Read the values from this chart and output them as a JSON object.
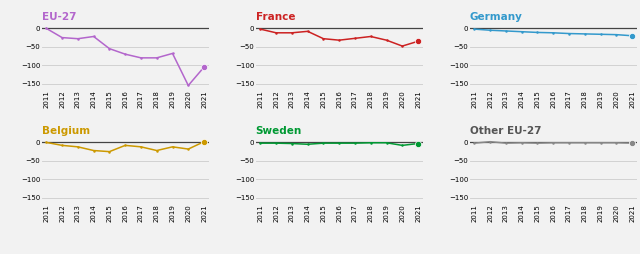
{
  "years": [
    2011,
    2012,
    2013,
    2014,
    2015,
    2016,
    2017,
    2018,
    2019,
    2020,
    2021
  ],
  "series": {
    "EU-27": {
      "values": [
        0,
        -25,
        -28,
        -22,
        -55,
        -70,
        -80,
        -80,
        -68,
        -155,
        -105
      ],
      "color": "#b366cc",
      "title_color": "#b366cc",
      "ylim": [
        -165,
        15
      ],
      "yticks": [
        0,
        -50,
        -100,
        -150
      ],
      "row": 0,
      "col": 0
    },
    "France": {
      "values": [
        -2,
        -12,
        -12,
        -8,
        -28,
        -32,
        -27,
        -22,
        -32,
        -48,
        -35
      ],
      "color": "#cc2222",
      "title_color": "#cc2222",
      "ylim": [
        -165,
        15
      ],
      "yticks": [
        0,
        -50,
        -100,
        -150
      ],
      "row": 0,
      "col": 1
    },
    "Germany": {
      "values": [
        -2,
        -5,
        -7,
        -9,
        -11,
        -12,
        -14,
        -15,
        -16,
        -17,
        -20
      ],
      "color": "#3399cc",
      "title_color": "#3399cc",
      "ylim": [
        -165,
        15
      ],
      "yticks": [
        0,
        -50,
        -100,
        -150
      ],
      "row": 0,
      "col": 2
    },
    "Belgium": {
      "values": [
        0,
        -8,
        -12,
        -22,
        -25,
        -8,
        -12,
        -22,
        -12,
        -18,
        2
      ],
      "color": "#cc9900",
      "title_color": "#cc9900",
      "ylim": [
        -165,
        15
      ],
      "yticks": [
        0,
        -50,
        -100,
        -150
      ],
      "row": 1,
      "col": 0
    },
    "Sweden": {
      "values": [
        -2,
        -2,
        -3,
        -5,
        -2,
        -2,
        -2,
        -1,
        -1,
        -8,
        -3
      ],
      "color": "#009933",
      "title_color": "#009933",
      "ylim": [
        -165,
        15
      ],
      "yticks": [
        0,
        -50,
        -100,
        -150
      ],
      "row": 1,
      "col": 1
    },
    "Other EU-27": {
      "values": [
        -2,
        2,
        -2,
        -1,
        -2,
        -1,
        -1,
        -1,
        -1,
        -1,
        -2
      ],
      "color": "#888888",
      "title_color": "#555555",
      "ylim": [
        -165,
        15
      ],
      "yticks": [
        0,
        -50,
        -100,
        -150
      ],
      "row": 1,
      "col": 2
    }
  },
  "baseline_color": "#444444",
  "grid_color": "#cccccc",
  "bg_color": "#f2f2f2",
  "tick_label_fontsize": 5.0,
  "title_fontsize": 7.5
}
